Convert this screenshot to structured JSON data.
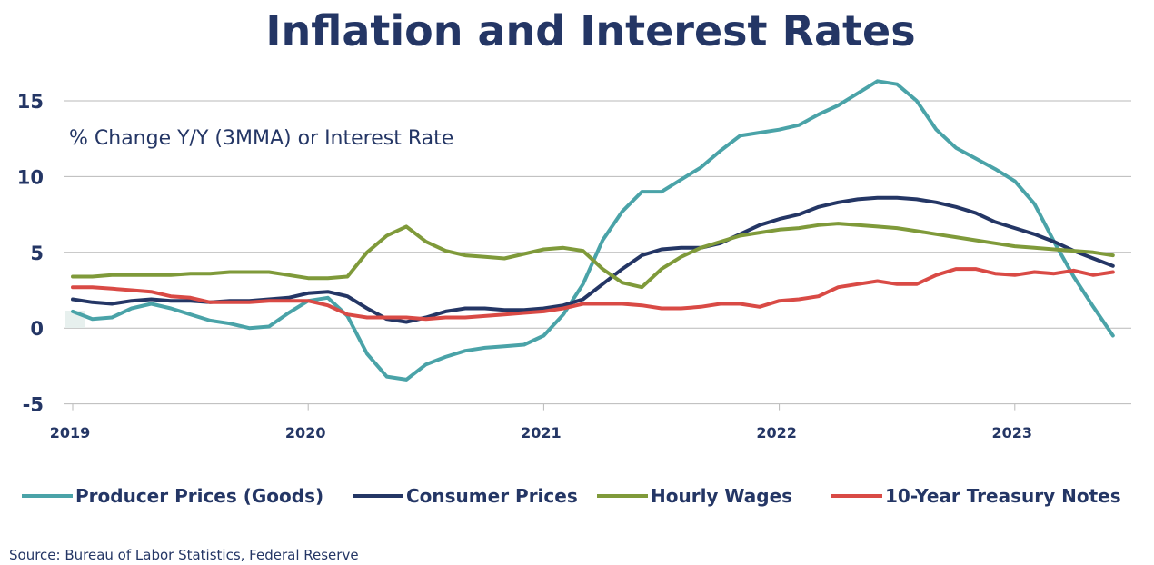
{
  "chart_data": {
    "type": "line",
    "title": "Inflation and Interest Rates",
    "subtitle": "% Change Y/Y (3MMA) or Interest Rate",
    "source": "Source:  Bureau of Labor Statistics, Federal Reserve",
    "xlabel": "",
    "ylabel": "",
    "ylim": [
      -5,
      17
    ],
    "yticks": [
      -5,
      0,
      5,
      10,
      15
    ],
    "xtick_labels": [
      "2019",
      "2020",
      "2021",
      "2022",
      "2023"
    ],
    "x_start": "2019-01",
    "grid": true,
    "legend_position": "bottom",
    "series": [
      {
        "name": "Producer Prices (Goods)",
        "color": "#4aa3a8",
        "values": [
          1.1,
          0.6,
          0.7,
          1.3,
          1.6,
          1.3,
          0.9,
          0.5,
          0.3,
          0.0,
          0.1,
          1.0,
          1.8,
          2.0,
          0.8,
          -1.7,
          -3.2,
          -3.4,
          -2.4,
          -1.9,
          -1.5,
          -1.3,
          -1.2,
          -1.1,
          -0.5,
          0.9,
          2.9,
          5.8,
          7.7,
          9.0,
          9.0,
          9.8,
          10.6,
          11.7,
          12.7,
          12.9,
          13.1,
          13.4,
          14.1,
          14.7,
          15.5,
          16.3,
          16.1,
          15.0,
          13.1,
          11.9,
          11.2,
          10.5,
          9.7,
          8.2,
          5.7,
          3.4,
          1.4,
          -0.5
        ]
      },
      {
        "name": "Consumer Prices",
        "color": "#243665",
        "values": [
          1.9,
          1.7,
          1.6,
          1.8,
          1.9,
          1.8,
          1.8,
          1.7,
          1.8,
          1.8,
          1.9,
          2.0,
          2.3,
          2.4,
          2.1,
          1.3,
          0.6,
          0.4,
          0.7,
          1.1,
          1.3,
          1.3,
          1.2,
          1.2,
          1.3,
          1.5,
          1.9,
          2.9,
          3.9,
          4.8,
          5.2,
          5.3,
          5.3,
          5.6,
          6.2,
          6.8,
          7.2,
          7.5,
          8.0,
          8.3,
          8.5,
          8.6,
          8.6,
          8.5,
          8.3,
          8.0,
          7.6,
          7.0,
          6.6,
          6.2,
          5.7,
          5.1,
          4.6,
          4.1
        ]
      },
      {
        "name": "Hourly Wages",
        "color": "#7f9a3a",
        "values": [
          3.4,
          3.4,
          3.5,
          3.5,
          3.5,
          3.5,
          3.6,
          3.6,
          3.7,
          3.7,
          3.7,
          3.5,
          3.3,
          3.3,
          3.4,
          5.0,
          6.1,
          6.7,
          5.7,
          5.1,
          4.8,
          4.7,
          4.6,
          4.9,
          5.2,
          5.3,
          5.1,
          3.9,
          3.0,
          2.7,
          3.9,
          4.7,
          5.3,
          5.7,
          6.1,
          6.3,
          6.5,
          6.6,
          6.8,
          6.9,
          6.8,
          6.7,
          6.6,
          6.4,
          6.2,
          6.0,
          5.8,
          5.6,
          5.4,
          5.3,
          5.2,
          5.1,
          5.0,
          4.8
        ]
      },
      {
        "name": "10-Year Treasury Notes",
        "color": "#d94a45",
        "values": [
          2.7,
          2.7,
          2.6,
          2.5,
          2.4,
          2.1,
          2.0,
          1.7,
          1.7,
          1.7,
          1.8,
          1.8,
          1.8,
          1.5,
          0.9,
          0.7,
          0.7,
          0.7,
          0.6,
          0.7,
          0.7,
          0.8,
          0.9,
          1.0,
          1.1,
          1.3,
          1.6,
          1.6,
          1.6,
          1.5,
          1.3,
          1.3,
          1.4,
          1.6,
          1.6,
          1.4,
          1.8,
          1.9,
          2.1,
          2.7,
          2.9,
          3.1,
          2.9,
          2.9,
          3.5,
          3.9,
          3.9,
          3.6,
          3.5,
          3.7,
          3.6,
          3.8,
          3.5,
          3.7
        ]
      }
    ]
  }
}
